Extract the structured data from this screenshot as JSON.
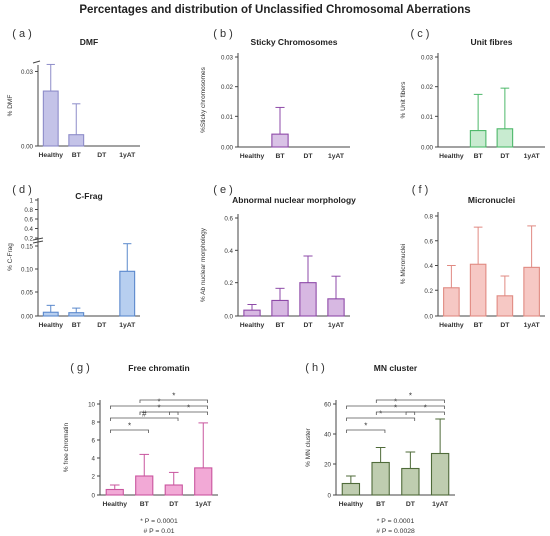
{
  "title": "Percentages and distribution of Unclassified Chromosomal Aberrations",
  "categories": [
    "Healthy",
    "BT",
    "DT",
    "1yAT"
  ],
  "chart_data": [
    {
      "panel": "( a )",
      "title": "DMF",
      "ylabel": "% DMF",
      "type": "bar",
      "categories": [
        "Healthy",
        "BT",
        "DT",
        "1yAT"
      ],
      "values": [
        0.022,
        0.0042,
        0,
        0
      ],
      "errors": [
        0.0118,
        0.0126,
        0,
        0
      ],
      "ylim": [
        0,
        0.031
      ],
      "yticks": [
        "0.00",
        "0.03"
      ],
      "ytick_values": [
        0,
        0.03
      ],
      "axis_break": true,
      "colors": {
        "fill": "#c4c3e8",
        "edge": "#8d8cc9"
      }
    },
    {
      "panel": "( b )",
      "title": "Sticky Chromosomes",
      "ylabel": "%Sticky chromosomes",
      "type": "bar",
      "categories": [
        "Healthy",
        "BT",
        "DT",
        "1yAT"
      ],
      "values": [
        0,
        0.004,
        0,
        0
      ],
      "errors": [
        0,
        0.009,
        0,
        0
      ],
      "ylim": [
        0,
        0.03
      ],
      "yticks": [
        "0.00",
        "0.01",
        "0.02",
        "0.03"
      ],
      "ytick_values": [
        0,
        0.01,
        0.02,
        0.03
      ],
      "colors": {
        "fill": "#d9c2e6",
        "edge": "#8e4aa8"
      }
    },
    {
      "panel": "( c )",
      "title": "Unit fibres",
      "ylabel": "% Unit fibers",
      "type": "bar",
      "categories": [
        "Healthy",
        "BT",
        "DT",
        "1yAT"
      ],
      "values": [
        0,
        0.0052,
        0.0058,
        0
      ],
      "errors": [
        0,
        0.0122,
        0.0137,
        0
      ],
      "ylim": [
        0,
        0.03
      ],
      "yticks": [
        "0.00",
        "0.01",
        "0.02",
        "0.03"
      ],
      "ytick_values": [
        0,
        0.01,
        0.02,
        0.03
      ],
      "colors": {
        "fill": "#c8ebd0",
        "edge": "#4db86a"
      }
    },
    {
      "panel": "( d )",
      "title": "C-Frag",
      "ylabel": "% C-Frag",
      "type": "bar",
      "categories": [
        "Healthy",
        "BT",
        "DT",
        "1yAT"
      ],
      "values": [
        0.006,
        0.005,
        0,
        0.095
      ],
      "errors": [
        0.015,
        0.01,
        0,
        0.06
      ],
      "ylim": [
        0,
        0.15
      ],
      "yticks": [
        "0.00",
        "0.05",
        "0.10",
        "0.15"
      ],
      "ytick_values": [
        0,
        0.05,
        0.1,
        0.15
      ],
      "break_ticks": [
        "0.2",
        "0.4",
        "0.6",
        "0.8",
        "1"
      ],
      "axis_break": true,
      "colors": {
        "fill": "#b7cff0",
        "edge": "#5a88cc"
      }
    },
    {
      "panel": "( e )",
      "title": "Abnormal nuclear morphology",
      "ylabel": "% Ab nuclear morphology",
      "type": "bar",
      "categories": [
        "Healthy",
        "BT",
        "DT",
        "1yAT"
      ],
      "values": [
        0.03,
        0.09,
        0.2,
        0.1
      ],
      "errors": [
        0.035,
        0.075,
        0.165,
        0.14
      ],
      "ylim": [
        0,
        0.6
      ],
      "yticks": [
        "0.0",
        "0.2",
        "0.4",
        "0.6"
      ],
      "ytick_values": [
        0,
        0.2,
        0.4,
        0.6
      ],
      "colors": {
        "fill": "#d7b8e2",
        "edge": "#8e4aa8"
      }
    },
    {
      "panel": "( f )",
      "title": "Micronuclei",
      "ylabel": "% Micronuclei",
      "type": "bar",
      "categories": [
        "Healthy",
        "BT",
        "DT",
        "1yAT"
      ],
      "values": [
        0.22,
        0.41,
        0.155,
        0.385
      ],
      "errors": [
        0.18,
        0.3,
        0.16,
        0.335
      ],
      "ylim": [
        0,
        0.8
      ],
      "yticks": [
        "0.0",
        "0.2",
        "0.4",
        "0.6",
        "0.8"
      ],
      "ytick_values": [
        0,
        0.2,
        0.4,
        0.6,
        0.8
      ],
      "colors": {
        "fill": "#f6c8c4",
        "edge": "#e08a82"
      }
    },
    {
      "panel": "( g )",
      "title": "Free chromatin",
      "ylabel": "% free chromatin",
      "type": "bar",
      "categories": [
        "Healthy",
        "BT",
        "DT",
        "1yAT"
      ],
      "values": [
        0.5,
        2.0,
        1.0,
        2.9
      ],
      "errors": [
        0.5,
        2.4,
        1.4,
        5.0
      ],
      "ylim": [
        0,
        10
      ],
      "yticks": [
        "0",
        "2",
        "4",
        "6",
        "8",
        "10"
      ],
      "ytick_values": [
        0,
        2,
        4,
        6,
        8,
        10
      ],
      "colors": {
        "fill": "#f2a9d6",
        "edge": "#c9559e"
      },
      "annotations": [
        {
          "from": 0,
          "to": 1,
          "label": "*"
        },
        {
          "from": 0,
          "to": 2,
          "label": "#"
        },
        {
          "from": 0,
          "to": 3,
          "label": "*"
        },
        {
          "from": 1,
          "to": 2,
          "label": "*"
        },
        {
          "from": 2,
          "to": 3,
          "label": "*"
        },
        {
          "from": 1,
          "to": 3,
          "label": "*"
        }
      ],
      "footnotes": [
        "* P = 0.0001",
        "# P = 0.01"
      ]
    },
    {
      "panel": "( h )",
      "title": "MN cluster",
      "ylabel": "% MN cluster",
      "type": "bar",
      "categories": [
        "Healthy",
        "BT",
        "DT",
        "1yAT"
      ],
      "values": [
        7,
        21,
        17,
        27
      ],
      "errors": [
        5,
        10,
        11,
        23
      ],
      "ylim": [
        0,
        60
      ],
      "yticks": [
        "0",
        "20",
        "40",
        "60"
      ],
      "ytick_values": [
        0,
        20,
        40,
        60
      ],
      "colors": {
        "fill": "#bfcdb0",
        "edge": "#4f6b3a"
      },
      "annotations": [
        {
          "from": 0,
          "to": 1,
          "label": "*"
        },
        {
          "from": 0,
          "to": 2,
          "label": "*"
        },
        {
          "from": 0,
          "to": 3,
          "label": "*"
        },
        {
          "from": 1,
          "to": 2,
          "label": "*"
        },
        {
          "from": 2,
          "to": 3,
          "label": "*"
        },
        {
          "from": 1,
          "to": 3,
          "label": "*"
        }
      ],
      "footnotes": [
        "* P = 0.0001",
        "# P = 0.0028"
      ]
    }
  ]
}
